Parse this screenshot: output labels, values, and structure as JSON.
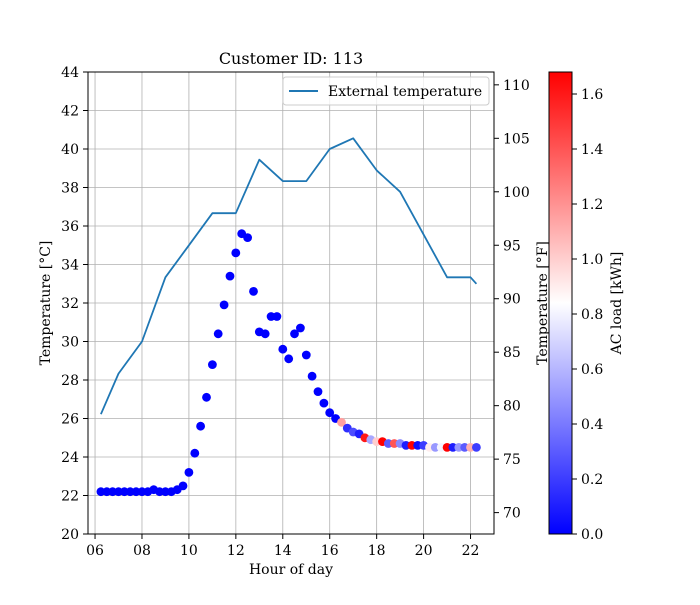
{
  "chart_data": {
    "type": "scatter",
    "title": "Customer ID: 113",
    "xlabel": "Hour of day",
    "ylabel": "Temperature [°C]",
    "y2label": "Temperature [°F]",
    "colorbar_label": "AC load [kWh]",
    "xlim": [
      5.7,
      23.0
    ],
    "ylim": [
      20,
      44
    ],
    "y2lim": [
      68,
      111.2
    ],
    "clim": [
      0,
      1.68
    ],
    "grid": true,
    "legend_position": "top-right",
    "x_ticks": [
      6,
      8,
      10,
      12,
      14,
      16,
      18,
      20,
      22
    ],
    "x_tick_labels": [
      "06",
      "08",
      "10",
      "12",
      "14",
      "16",
      "18",
      "20",
      "22"
    ],
    "y_ticks": [
      20,
      22,
      24,
      26,
      28,
      30,
      32,
      34,
      36,
      38,
      40,
      42,
      44
    ],
    "y_tick_labels": [
      "20",
      "22",
      "24",
      "26",
      "28",
      "30",
      "32",
      "34",
      "36",
      "38",
      "40",
      "42",
      "44"
    ],
    "y2_ticks": [
      70,
      75,
      80,
      85,
      90,
      95,
      100,
      105,
      110
    ],
    "y2_tick_labels": [
      "70",
      "75",
      "80",
      "85",
      "90",
      "95",
      "100",
      "105",
      "110"
    ],
    "colorbar_ticks": [
      0.0,
      0.2,
      0.4,
      0.6,
      0.8,
      1.0,
      1.2,
      1.4,
      1.6
    ],
    "colorbar_tick_labels": [
      "0.0",
      "0.2",
      "0.4",
      "0.6",
      "0.8",
      "1.0",
      "1.2",
      "1.4",
      "1.6"
    ],
    "colormap": {
      "low": "#0000ff",
      "mid": "#ffffff",
      "high": "#ff0000"
    },
    "line_series": {
      "name": "External temperature",
      "axis": "right",
      "color": "#1f77b4",
      "x": [
        6.25,
        7.0,
        8.0,
        9.0,
        10.0,
        11.0,
        12.0,
        13.0,
        14.0,
        15.0,
        16.0,
        17.0,
        18.0,
        19.0,
        20.0,
        21.0,
        22.0,
        22.25
      ],
      "y": [
        79.2,
        83.0,
        86.0,
        92.0,
        95.0,
        98.0,
        98.0,
        103.0,
        101.0,
        101.0,
        104.0,
        105.0,
        102.0,
        100.0,
        96.0,
        92.0,
        92.0,
        91.4
      ]
    },
    "scatter_series": {
      "x": [
        6.25,
        6.5,
        6.75,
        7.0,
        7.25,
        7.5,
        7.75,
        8.0,
        8.25,
        8.5,
        8.75,
        9.0,
        9.25,
        9.5,
        9.75,
        10.0,
        10.25,
        10.5,
        10.75,
        11.0,
        11.25,
        11.5,
        11.75,
        12.0,
        12.25,
        12.5,
        12.75,
        13.0,
        13.25,
        13.5,
        13.75,
        14.0,
        14.25,
        14.5,
        14.75,
        15.0,
        15.25,
        15.5,
        15.75,
        16.0,
        16.25,
        16.5,
        16.75,
        17.0,
        17.25,
        17.5,
        17.75,
        18.0,
        18.25,
        18.5,
        18.75,
        19.0,
        19.25,
        19.5,
        19.75,
        20.0,
        20.25,
        20.5,
        20.75,
        21.0,
        21.25,
        21.5,
        21.75,
        22.0,
        22.25
      ],
      "y": [
        22.2,
        22.2,
        22.2,
        22.2,
        22.2,
        22.2,
        22.2,
        22.2,
        22.2,
        22.3,
        22.2,
        22.2,
        22.2,
        22.3,
        22.5,
        23.2,
        24.2,
        25.6,
        27.1,
        28.8,
        30.4,
        31.9,
        33.4,
        34.6,
        35.6,
        35.4,
        32.6,
        30.5,
        30.4,
        31.3,
        31.3,
        29.6,
        29.1,
        30.4,
        30.7,
        29.3,
        28.2,
        27.4,
        26.8,
        26.3,
        26.0,
        25.8,
        25.5,
        25.3,
        25.2,
        25.0,
        24.9,
        24.8,
        24.8,
        24.7,
        24.7,
        24.7,
        24.6,
        24.6,
        24.6,
        24.6,
        24.5,
        24.5,
        24.5,
        24.5,
        24.5,
        24.5,
        24.5,
        24.5,
        24.5
      ],
      "c": [
        0.0,
        0.0,
        0.0,
        0.0,
        0.0,
        0.0,
        0.0,
        0.0,
        0.0,
        0.0,
        0.0,
        0.0,
        0.0,
        0.0,
        0.0,
        0.0,
        0.0,
        0.0,
        0.0,
        0.0,
        0.0,
        0.0,
        0.0,
        0.0,
        0.0,
        0.0,
        0.0,
        0.0,
        0.0,
        0.0,
        0.0,
        0.0,
        0.0,
        0.0,
        0.0,
        0.0,
        0.0,
        0.0,
        0.0,
        0.0,
        0.0,
        1.15,
        0.15,
        0.25,
        0.1,
        1.6,
        0.55,
        1.0,
        1.68,
        0.3,
        1.4,
        0.45,
        0.1,
        1.68,
        0.05,
        0.2,
        0.9,
        0.5,
        0.8,
        1.68,
        0.1,
        0.5,
        0.3,
        1.1,
        0.2
      ]
    }
  }
}
